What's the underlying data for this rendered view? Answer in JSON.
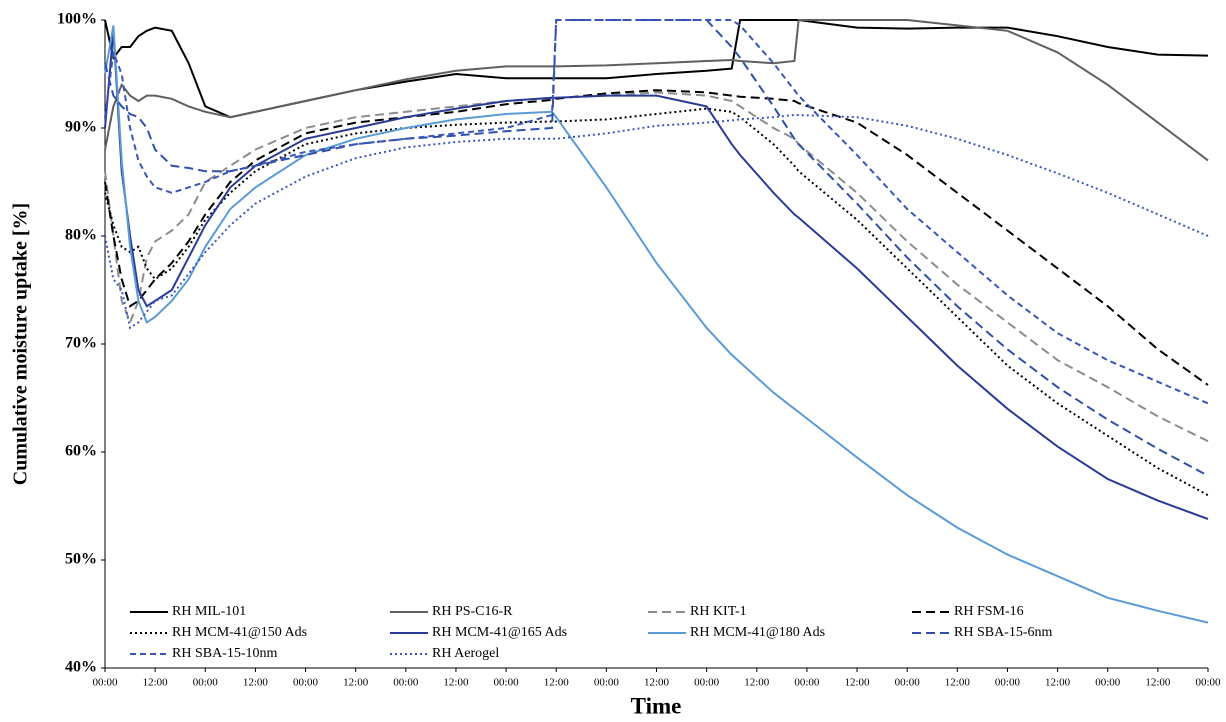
{
  "chart_data": {
    "type": "line",
    "y_label": "Cumulative moisture uptake [%]",
    "x_label": "Time",
    "x": [
      0,
      2,
      4,
      6,
      8,
      10,
      12,
      16,
      20,
      24,
      30,
      36,
      48,
      60,
      72,
      84,
      96,
      107,
      108,
      120,
      132,
      144,
      150,
      152,
      160,
      165,
      166,
      180,
      192,
      204,
      216,
      228,
      240,
      252,
      264
    ],
    "xlim": [
      0,
      264
    ],
    "xticks": [
      {
        "value": 0,
        "label": "00:00"
      },
      {
        "value": 12,
        "label": "12:00"
      },
      {
        "value": 24,
        "label": "00:00"
      },
      {
        "value": 36,
        "label": "12:00"
      },
      {
        "value": 48,
        "label": "00:00"
      },
      {
        "value": 60,
        "label": "12:00"
      },
      {
        "value": 72,
        "label": "00:00"
      },
      {
        "value": 84,
        "label": "12:00"
      },
      {
        "value": 96,
        "label": "00:00"
      },
      {
        "value": 108,
        "label": "12:00"
      },
      {
        "value": 120,
        "label": "00:00"
      },
      {
        "value": 132,
        "label": "12:00"
      },
      {
        "value": 144,
        "label": "00:00"
      },
      {
        "value": 156,
        "label": "12:00"
      },
      {
        "value": 168,
        "label": "00:00"
      },
      {
        "value": 180,
        "label": "12:00"
      },
      {
        "value": 192,
        "label": "00:00"
      },
      {
        "value": 204,
        "label": "12:00"
      },
      {
        "value": 216,
        "label": "00:00"
      },
      {
        "value": 228,
        "label": "12:00"
      },
      {
        "value": 240,
        "label": "00:00"
      },
      {
        "value": 252,
        "label": "12:00"
      },
      {
        "value": 264,
        "label": "00:00"
      }
    ],
    "ylim": [
      40,
      100
    ],
    "yticks": [
      {
        "value": 40,
        "label": "40%"
      },
      {
        "value": 50,
        "label": "50%"
      },
      {
        "value": 60,
        "label": "60%"
      },
      {
        "value": 70,
        "label": "70%"
      },
      {
        "value": 80,
        "label": "80%"
      },
      {
        "value": 90,
        "label": "90%"
      },
      {
        "value": 100,
        "label": "100%"
      }
    ],
    "grid": false,
    "legend": "bottom",
    "series": [
      {
        "name": "RH MIL-101",
        "color": "#000000",
        "dash": "solid",
        "values": [
          100,
          96.5,
          97.5,
          97.5,
          98.5,
          99,
          99.3,
          99,
          96,
          92,
          91,
          91.5,
          92.5,
          93.5,
          94.3,
          95,
          94.6,
          94.6,
          94.6,
          94.6,
          95,
          95.3,
          95.5,
          100,
          100,
          100,
          100,
          99.3,
          99.2,
          99.3,
          99.3,
          98.5,
          97.5,
          96.8,
          96.7
        ]
      },
      {
        "name": "RH PS-C16-R",
        "color": "#606060",
        "dash": "solid",
        "values": [
          88,
          92,
          94,
          93,
          92.5,
          93,
          93,
          92.7,
          92,
          91.5,
          91,
          91.5,
          92.5,
          93.5,
          94.5,
          95.3,
          95.7,
          95.7,
          95.7,
          95.8,
          96,
          96.2,
          96.3,
          96.2,
          96,
          96.2,
          100,
          100,
          100,
          99.5,
          99,
          97,
          94,
          90.5,
          87
        ]
      },
      {
        "name": "RH KIT-1",
        "color": "#8c8c8c",
        "dash": "dashed",
        "values": [
          86,
          80,
          74,
          72,
          74,
          78,
          79.5,
          80.5,
          82,
          85,
          86.5,
          88,
          90,
          91,
          91.5,
          92,
          92.5,
          92.8,
          92.8,
          93,
          93.3,
          93,
          92.5,
          92,
          90,
          89,
          88.5,
          84,
          79.5,
          75.5,
          72,
          68.5,
          66,
          63.3,
          61
        ]
      },
      {
        "name": "RH FSM-16",
        "color": "#000000",
        "dash": "dashed",
        "values": [
          85,
          80,
          76,
          73.5,
          74,
          75,
          76,
          77.5,
          79.5,
          82,
          85,
          87,
          89.5,
          90.5,
          91,
          91.5,
          92.2,
          92.6,
          92.7,
          93.2,
          93.5,
          93.3,
          93,
          92.9,
          92.7,
          92.5,
          92.3,
          90.5,
          87.5,
          84,
          80.5,
          77,
          73.5,
          69.5,
          66.2
        ]
      },
      {
        "name": "RH MCM-41@150 Ads",
        "color": "#000000",
        "dash": "dotted",
        "values": [
          84,
          81,
          79,
          78.5,
          79,
          77,
          76,
          77,
          79,
          81.5,
          84,
          86,
          88.5,
          89.5,
          90,
          90.3,
          90.5,
          90.6,
          90.6,
          90.8,
          91.3,
          91.8,
          91.5,
          91,
          88.5,
          86.5,
          86,
          81.5,
          77,
          72.5,
          68,
          64.5,
          61.5,
          58.5,
          56
        ]
      },
      {
        "name": "RH MCM-41@165 Ads",
        "color": "#2b3a96",
        "dash": "solid",
        "values": [
          90,
          99,
          86,
          80,
          75,
          73.5,
          74,
          75,
          78,
          81,
          84.5,
          86.5,
          89,
          90,
          91,
          91.8,
          92.5,
          92.8,
          92.8,
          93,
          93,
          92,
          88.5,
          87.5,
          84,
          82,
          81.7,
          77,
          72.5,
          68,
          64,
          60.5,
          57.5,
          55.5,
          53.8
        ]
      },
      {
        "name": "RH MCM-41@180 Ads",
        "color": "#5b9bd5",
        "dash": "solid",
        "values": [
          95,
          99.5,
          87,
          79,
          74,
          72,
          72.5,
          74,
          76,
          79,
          82.5,
          84.5,
          87.5,
          89,
          90,
          90.8,
          91.3,
          91.5,
          91,
          84.5,
          77.5,
          71.5,
          69,
          68.3,
          65.5,
          64,
          63.7,
          59.5,
          56,
          53,
          50.5,
          48.5,
          46.5,
          45.3,
          44.2
        ]
      },
      {
        "name": "RH SBA-15-6nm",
        "color": "#2f4fa8",
        "dash": "dashed",
        "values": [
          96,
          93,
          92,
          91.3,
          91,
          90,
          88,
          86.5,
          86.3,
          86,
          86,
          86.5,
          87.5,
          88.5,
          89,
          89.3,
          89.7,
          90,
          100,
          100,
          100,
          100,
          97.5,
          96.5,
          92,
          89,
          88.5,
          83,
          78,
          73.5,
          69.5,
          66,
          63,
          60.3,
          57.8
        ]
      },
      {
        "name": "RH SBA-15-10nm",
        "color": "#3a56b8",
        "dash": "short",
        "values": [
          91,
          97,
          95,
          90,
          87,
          85.5,
          84.5,
          84,
          84.5,
          85,
          86,
          86.5,
          87.8,
          88.5,
          89,
          89.5,
          90,
          91.2,
          100,
          100,
          100,
          100,
          100,
          99.5,
          96,
          93.5,
          93,
          87.5,
          82.5,
          78.5,
          74.5,
          71,
          68.5,
          66.5,
          64.5
        ]
      },
      {
        "name": "RH Aerogel",
        "color": "#3a56c0",
        "dash": "dotted",
        "values": [
          80,
          76,
          75,
          71.5,
          72,
          73,
          74,
          74.5,
          76.5,
          78.5,
          81,
          83,
          85.5,
          87.2,
          88.2,
          88.7,
          89,
          89,
          89,
          89.5,
          90.2,
          90.5,
          90.7,
          90.8,
          91,
          91.2,
          91.2,
          91,
          90.2,
          89,
          87.5,
          85.8,
          84,
          82,
          80
        ]
      }
    ]
  }
}
